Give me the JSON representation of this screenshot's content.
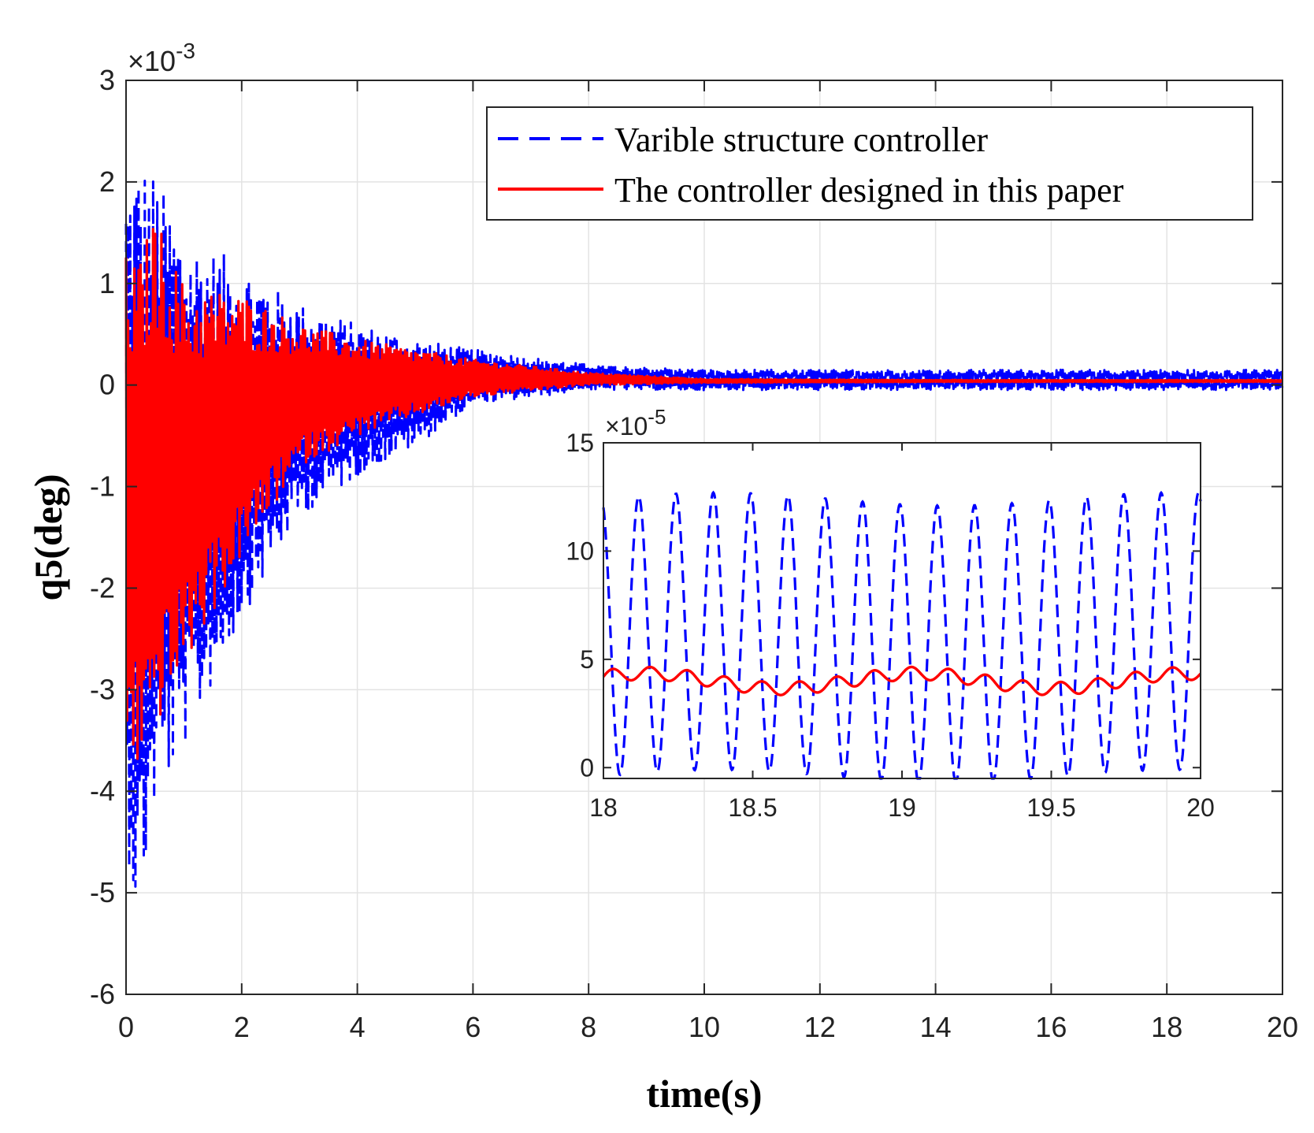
{
  "chart_data": [
    {
      "type": "line",
      "name": "main",
      "xlabel": "time(s)",
      "ylabel": "q5(deg)",
      "exponent": {
        "base": "×10",
        "power": "-3"
      },
      "xlim": [
        0,
        20
      ],
      "ylim": [
        -6,
        3
      ],
      "xticks": [
        0,
        2,
        4,
        6,
        8,
        10,
        12,
        14,
        16,
        18,
        20
      ],
      "yticks": [
        -6,
        -5,
        -4,
        -3,
        -2,
        -1,
        0,
        1,
        2,
        3
      ],
      "grid": true,
      "legend_position": "top-right",
      "series": [
        {
          "name": "Varible structure controller",
          "color": "#0000ff",
          "style": "dashed",
          "envelope": {
            "t": [
              0,
              0.2,
              0.5,
              1,
              2,
              3,
              4,
              5,
              6,
              8,
              10,
              14,
              20
            ],
            "upper": [
              2.1,
              2.3,
              2.1,
              1.5,
              1.2,
              0.8,
              0.6,
              0.45,
              0.35,
              0.2,
              0.15,
              0.15,
              0.15
            ],
            "lower": [
              -4.5,
              -5.4,
              -4.2,
              -3.6,
              -2.3,
              -1.3,
              -0.9,
              -0.6,
              -0.2,
              -0.05,
              -0.05,
              -0.05,
              -0.05
            ]
          }
        },
        {
          "name": "The controller designed in this paper",
          "color": "#ff0000",
          "style": "solid",
          "envelope": {
            "t": [
              0,
              0.2,
              0.5,
              1,
              2,
              3,
              4,
              5,
              6,
              8,
              10,
              14,
              20
            ],
            "upper": [
              1.3,
              1.2,
              1.7,
              1.0,
              0.9,
              0.6,
              0.45,
              0.35,
              0.25,
              0.12,
              0.06,
              0.05,
              0.05
            ],
            "lower": [
              -3.5,
              -3.8,
              -3.4,
              -2.8,
              -1.7,
              -0.8,
              -0.5,
              -0.3,
              -0.12,
              0.0,
              0.02,
              0.03,
              0.03
            ]
          }
        }
      ]
    },
    {
      "type": "line",
      "name": "inset",
      "exponent": {
        "base": "×10",
        "power": "-5"
      },
      "xlim": [
        18,
        20
      ],
      "ylim": [
        -0.5,
        15
      ],
      "xticks": [
        18,
        18.5,
        19,
        19.5,
        20
      ],
      "yticks": [
        0,
        5,
        10,
        15
      ],
      "grid": false,
      "series": [
        {
          "name": "Varible structure controller",
          "color": "#0000ff",
          "style": "dashed",
          "periods": 16,
          "mean": 6.0,
          "amplitude": 6.4
        },
        {
          "name": "The controller designed in this paper",
          "color": "#ff0000",
          "style": "solid",
          "mean": 4.0,
          "amplitude": 0.3
        }
      ]
    }
  ]
}
